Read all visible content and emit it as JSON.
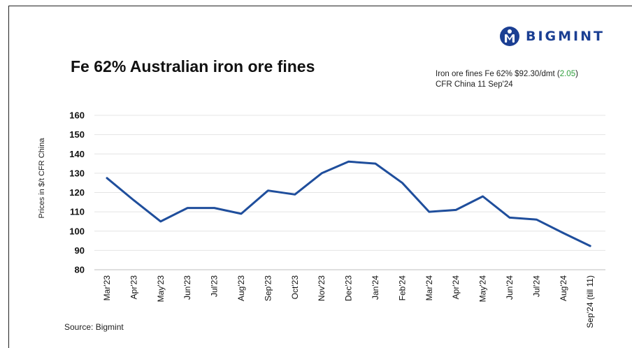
{
  "header": {
    "brand": "BIGMINT",
    "brand_color": "#1b3f93"
  },
  "chart_data": {
    "type": "line",
    "title": "Fe 62% Australian iron ore fines",
    "ylabel": "Prices in $/t CFR China",
    "xlabel": "",
    "ylim": [
      80,
      160
    ],
    "yticks": [
      80,
      90,
      100,
      110,
      120,
      130,
      140,
      150,
      160
    ],
    "grid": true,
    "categories": [
      "Mar'23",
      "Apr'23",
      "May'23",
      "Jun'23",
      "Jul'23",
      "Aug'23",
      "Sep'23",
      "Oct'23",
      "Nov'23",
      "Dec'23",
      "Jan'24",
      "Feb'24",
      "Mar'24",
      "Apr'24",
      "May'24",
      "Jun'24",
      "Jul'24",
      "Aug'24",
      "Sep'24 (till 11)"
    ],
    "series": [
      {
        "color": "#1f4e9c",
        "values": [
          127.5,
          116,
          105,
          112,
          112,
          109,
          121,
          119,
          130,
          136,
          135,
          125,
          110,
          111,
          118,
          107,
          106,
          99,
          92.3
        ]
      }
    ],
    "annotation": {
      "line1_prefix": "Iron ore fines Fe 62% $92.30/dmt (",
      "change": "2.05",
      "line1_suffix": ")",
      "line2": "CFR China 11 Sep'24",
      "change_color": "#2e9e3c"
    }
  },
  "footer": {
    "source": "Source: Bigmint"
  }
}
